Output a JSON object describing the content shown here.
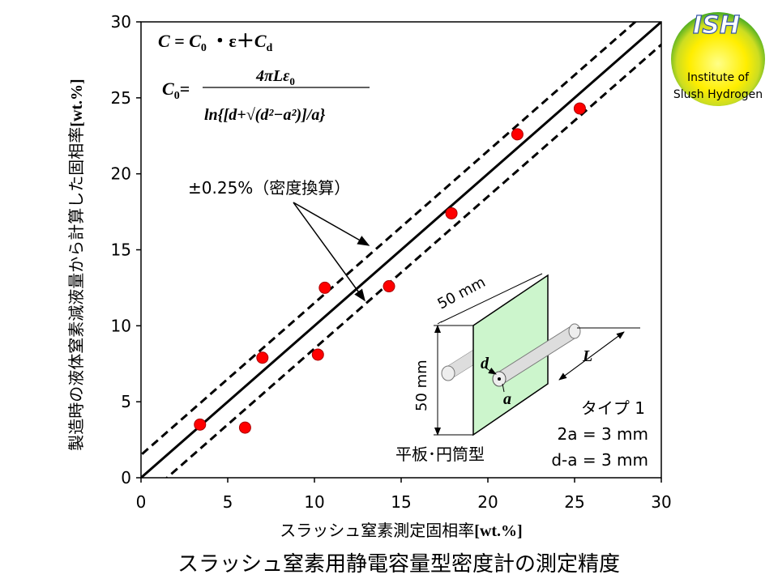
{
  "chart_data": {
    "type": "scatter",
    "title": "スラッシュ窒素用静電容量型密度計の測定精度",
    "xlabel_text": "スラッシュ窒素測定固相率",
    "xlabel_unit": "[wt.%]",
    "ylabel_text": "製造時の液体窒素減液量から計算した固相率",
    "ylabel_unit": "[wt.%]",
    "xlim": [
      0,
      30
    ],
    "ylim": [
      0,
      30
    ],
    "xticks": [
      0,
      5,
      10,
      15,
      20,
      25,
      30
    ],
    "yticks": [
      0,
      5,
      10,
      15,
      20,
      25,
      30
    ],
    "grid": false,
    "series": [
      {
        "marker": "circle",
        "color": "#ff0000",
        "points": [
          {
            "x": 3.4,
            "y": 3.5
          },
          {
            "x": 6.0,
            "y": 3.3
          },
          {
            "x": 7.0,
            "y": 7.9
          },
          {
            "x": 10.2,
            "y": 8.1
          },
          {
            "x": 10.6,
            "y": 12.5
          },
          {
            "x": 14.3,
            "y": 12.6
          },
          {
            "x": 17.9,
            "y": 17.4
          },
          {
            "x": 21.7,
            "y": 22.6
          },
          {
            "x": 25.3,
            "y": 24.3
          }
        ]
      }
    ],
    "reference_lines": [
      {
        "style": "solid",
        "offset": 0
      },
      {
        "style": "dashed",
        "offset": 1.5
      },
      {
        "style": "dashed",
        "offset": -1.5
      }
    ],
    "annotation_label": "±0.25%（密度換算）",
    "formula": {
      "line1_C": "C",
      "line1_eq": " = ",
      "line1_C0": "C",
      "line1_sub0": "0",
      "line1_mid": " ・ε＋",
      "line1_Cd": "C",
      "line1_subd": "d",
      "c0_label": "C",
      "c0_sub": "0",
      "c0_eq": "=",
      "numerator": "4πLε",
      "numerator_sub": "0",
      "denominator": "ln{[d+√(d²−a²)]/a}"
    },
    "inset": {
      "dim_top": "50 mm",
      "dim_left": "50 mm",
      "label_L": "L",
      "label_d": "d",
      "label_a": "a",
      "type_label": "タイプ 1",
      "spec1": "2a = 3 mm",
      "spec2": "d-a = 3 mm",
      "shape_label": "平板･円筒型"
    }
  },
  "logo": {
    "title": "ISH",
    "line1": "Institute of",
    "line2": "Slush Hydrogen",
    "colors": [
      "#ffff66",
      "#ccee22",
      "#33aa22"
    ]
  }
}
